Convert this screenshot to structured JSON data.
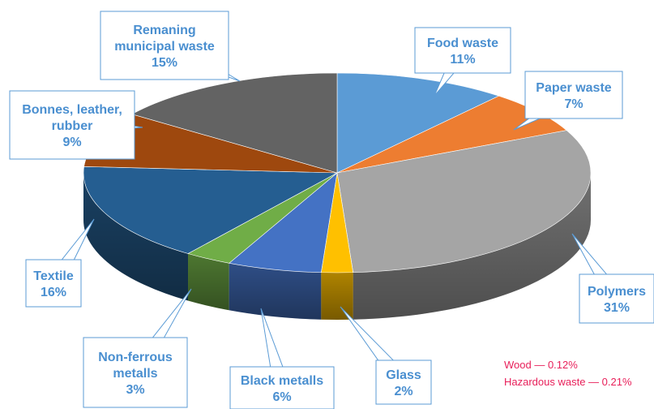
{
  "chart_data": {
    "type": "pie",
    "style": "3d-exploded-perspective",
    "title": "",
    "slices": [
      {
        "label": "Food waste",
        "value": 11,
        "pct_label": "11%",
        "label_lines": [
          "Food waste",
          "11%"
        ],
        "color": "#5b9bd5"
      },
      {
        "label": "Paper waste",
        "value": 7,
        "pct_label": "7%",
        "label_lines": [
          "Paper waste",
          "7%"
        ],
        "color": "#ed7d31"
      },
      {
        "label": "Polymers",
        "value": 31,
        "pct_label": "31%",
        "label_lines": [
          "Polymers",
          "31%"
        ],
        "color": "#a5a5a5"
      },
      {
        "label": "Glass",
        "value": 2,
        "pct_label": "2%",
        "label_lines": [
          "Glass",
          "2%"
        ],
        "color": "#ffc000"
      },
      {
        "label": "Black metalls",
        "value": 6,
        "pct_label": "6%",
        "label_lines": [
          "Black metalls",
          "6%"
        ],
        "color": "#4472c4"
      },
      {
        "label": "Non-ferrous metalls",
        "value": 3,
        "pct_label": "3%",
        "label_lines": [
          "Non-ferrous",
          "metalls",
          "3%"
        ],
        "color": "#70ad47"
      },
      {
        "label": "Textile",
        "value": 16,
        "pct_label": "16%",
        "label_lines": [
          "Textile",
          "16%"
        ],
        "color": "#255e91"
      },
      {
        "label": "Bonnes, leather, rubber",
        "value": 9,
        "pct_label": "9%",
        "label_lines": [
          "Bonnes, leather,",
          "rubber",
          "9%"
        ],
        "color": "#9e480e"
      },
      {
        "label": "Remaning municipal waste",
        "value": 15,
        "pct_label": "15%",
        "label_lines": [
          "Remaning",
          "municipal waste",
          "15%"
        ],
        "color": "#636363"
      }
    ],
    "notes": [
      "Wood — 0.12%",
      "Hazardous waste — 0.21%"
    ],
    "note_color": "#e8205a",
    "label_color": "#4a8fd0"
  }
}
